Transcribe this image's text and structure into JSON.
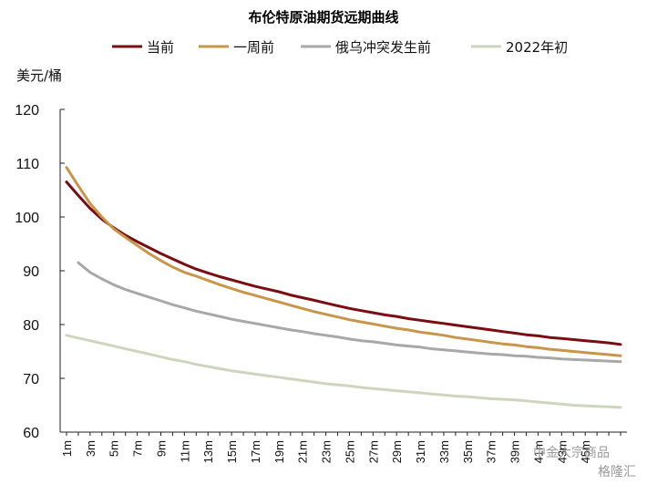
{
  "chart_data": {
    "type": "line",
    "title": "布伦特原油期货远期曲线",
    "ylabel": "美元/桶",
    "xlabel": "",
    "ylim": [
      60,
      120
    ],
    "yticks": [
      60,
      70,
      80,
      90,
      100,
      110,
      120
    ],
    "x_tick_labels": [
      "1m",
      "3m",
      "5m",
      "7m",
      "9m",
      "11m",
      "13m",
      "15m",
      "17m",
      "19m",
      "21m",
      "23m",
      "25m",
      "27m",
      "29m",
      "31m",
      "33m",
      "35m",
      "37m",
      "39m",
      "41m",
      "43m",
      "45m"
    ],
    "legend_position": "top",
    "grid": false,
    "series": [
      {
        "name": "当前",
        "color": "#7a0d12",
        "x_start": 1,
        "x_end": 48,
        "values": [
          106.5,
          104.0,
          101.6,
          99.6,
          98.0,
          96.6,
          95.4,
          94.3,
          93.2,
          92.2,
          91.2,
          90.3,
          89.6,
          88.9,
          88.3,
          87.7,
          87.1,
          86.6,
          86.1,
          85.5,
          85.0,
          84.5,
          84.0,
          83.5,
          83.0,
          82.6,
          82.2,
          81.8,
          81.5,
          81.1,
          80.8,
          80.5,
          80.2,
          79.9,
          79.6,
          79.3,
          79.0,
          78.7,
          78.4,
          78.1,
          77.9,
          77.6,
          77.4,
          77.2,
          77.0,
          76.8,
          76.6,
          76.3
        ]
      },
      {
        "name": "一周前",
        "color": "#c8964a",
        "x_start": 1,
        "x_end": 48,
        "values": [
          109.2,
          105.8,
          102.5,
          100.0,
          97.8,
          96.2,
          94.7,
          93.2,
          91.9,
          90.7,
          89.7,
          89.0,
          88.2,
          87.4,
          86.7,
          86.0,
          85.4,
          84.8,
          84.2,
          83.6,
          83.0,
          82.4,
          81.9,
          81.4,
          80.9,
          80.5,
          80.1,
          79.7,
          79.3,
          79.0,
          78.6,
          78.3,
          78.0,
          77.6,
          77.3,
          77.0,
          76.7,
          76.4,
          76.2,
          75.9,
          75.7,
          75.4,
          75.2,
          75.0,
          74.8,
          74.6,
          74.4,
          74.2
        ]
      },
      {
        "name": "俄乌冲突发生前",
        "color": "#a8a8a8",
        "x_start": 2,
        "x_end": 48,
        "values": [
          91.5,
          89.7,
          88.5,
          87.4,
          86.5,
          85.8,
          85.1,
          84.4,
          83.7,
          83.1,
          82.5,
          82.0,
          81.5,
          81.0,
          80.6,
          80.2,
          79.8,
          79.4,
          79.0,
          78.7,
          78.3,
          78.0,
          77.7,
          77.3,
          77.0,
          76.8,
          76.5,
          76.2,
          76.0,
          75.8,
          75.5,
          75.3,
          75.1,
          74.9,
          74.7,
          74.5,
          74.4,
          74.2,
          74.1,
          73.9,
          73.8,
          73.6,
          73.5,
          73.4,
          73.3,
          73.2,
          73.1
        ]
      },
      {
        "name": "2022年初",
        "color": "#cfd5bd",
        "x_start": 1,
        "x_end": 48,
        "values": [
          78.0,
          77.5,
          77.0,
          76.5,
          76.0,
          75.5,
          75.0,
          74.5,
          74.0,
          73.5,
          73.1,
          72.6,
          72.2,
          71.8,
          71.4,
          71.1,
          70.8,
          70.5,
          70.2,
          69.9,
          69.6,
          69.3,
          69.0,
          68.8,
          68.6,
          68.3,
          68.1,
          67.9,
          67.7,
          67.5,
          67.3,
          67.1,
          66.9,
          66.7,
          66.6,
          66.4,
          66.2,
          66.1,
          66.0,
          65.8,
          65.6,
          65.4,
          65.2,
          65.0,
          64.9,
          64.8,
          64.7,
          64.6
        ]
      }
    ]
  },
  "watermark": {
    "source_text": "中金大宗商品",
    "brand_text": "格隆汇"
  }
}
